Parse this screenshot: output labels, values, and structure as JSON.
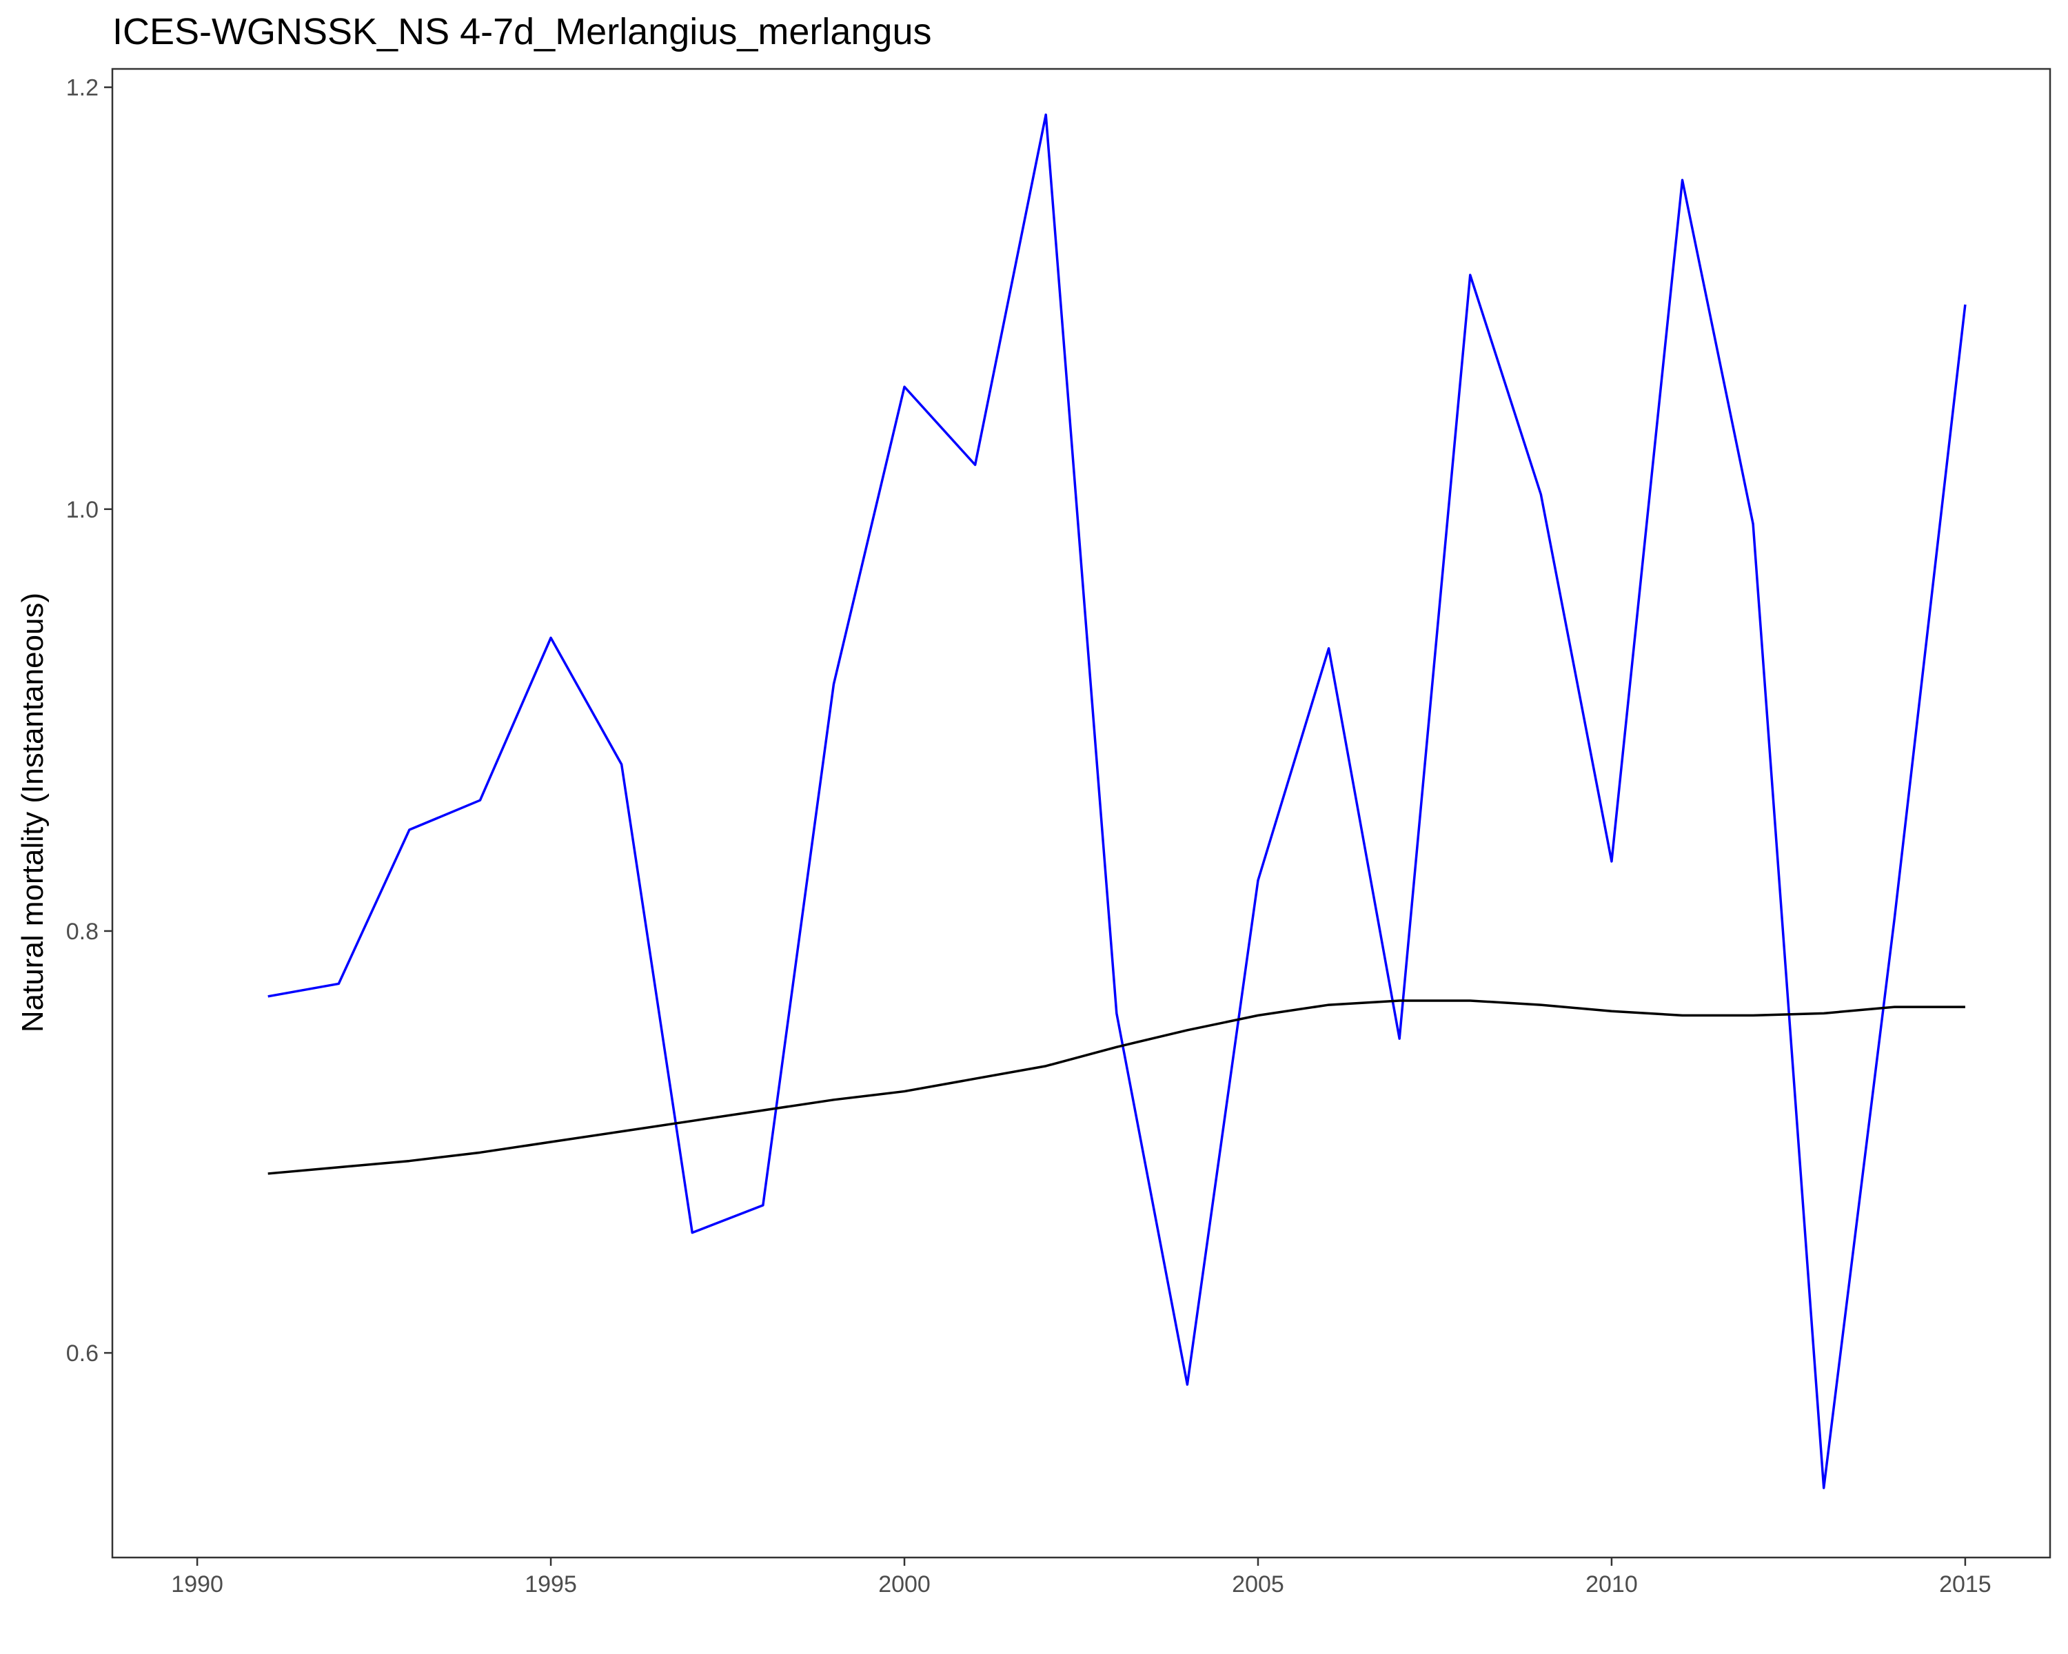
{
  "chart_data": {
    "type": "line",
    "title": "ICES-WGNSSK_NS 4-7d_Merlangius_merlangus",
    "xlabel": "",
    "ylabel": "Natural mortality (Instantaneous)",
    "xlim": [
      1988.8,
      2016.2
    ],
    "ylim": [
      0.503,
      1.2087
    ],
    "x_ticks": [
      1990,
      1995,
      2000,
      2005,
      2010,
      2015
    ],
    "x_tick_labels": [
      "1990",
      "1995",
      "2000",
      "2005",
      "2010",
      "2015"
    ],
    "y_ticks": [
      0.6,
      0.8,
      1.0,
      1.2
    ],
    "y_tick_labels": [
      "0.6",
      "0.8",
      "1.0",
      "1.2"
    ],
    "grid": false,
    "legend": "none",
    "x": [
      1991,
      1992,
      1993,
      1994,
      1995,
      1996,
      1997,
      1998,
      1999,
      2000,
      2001,
      2002,
      2003,
      2004,
      2005,
      2006,
      2007,
      2008,
      2009,
      2010,
      2011,
      2012,
      2013,
      2014,
      2015
    ],
    "series": [
      {
        "color": "#0000ff",
        "values": [
          0.769,
          0.775,
          0.848,
          0.862,
          0.939,
          0.879,
          0.657,
          0.67,
          0.917,
          1.058,
          1.021,
          1.187,
          0.761,
          0.585,
          0.824,
          0.934,
          0.749,
          1.111,
          1.007,
          0.833,
          1.156,
          0.993,
          0.536,
          0.806,
          1.097
        ]
      },
      {
        "color": "#000000",
        "values": [
          0.685,
          0.688,
          0.691,
          0.695,
          0.7,
          0.705,
          0.71,
          0.715,
          0.72,
          0.724,
          0.73,
          0.736,
          0.745,
          0.753,
          0.76,
          0.765,
          0.767,
          0.767,
          0.765,
          0.762,
          0.76,
          0.76,
          0.761,
          0.764,
          0.764
        ]
      }
    ]
  }
}
